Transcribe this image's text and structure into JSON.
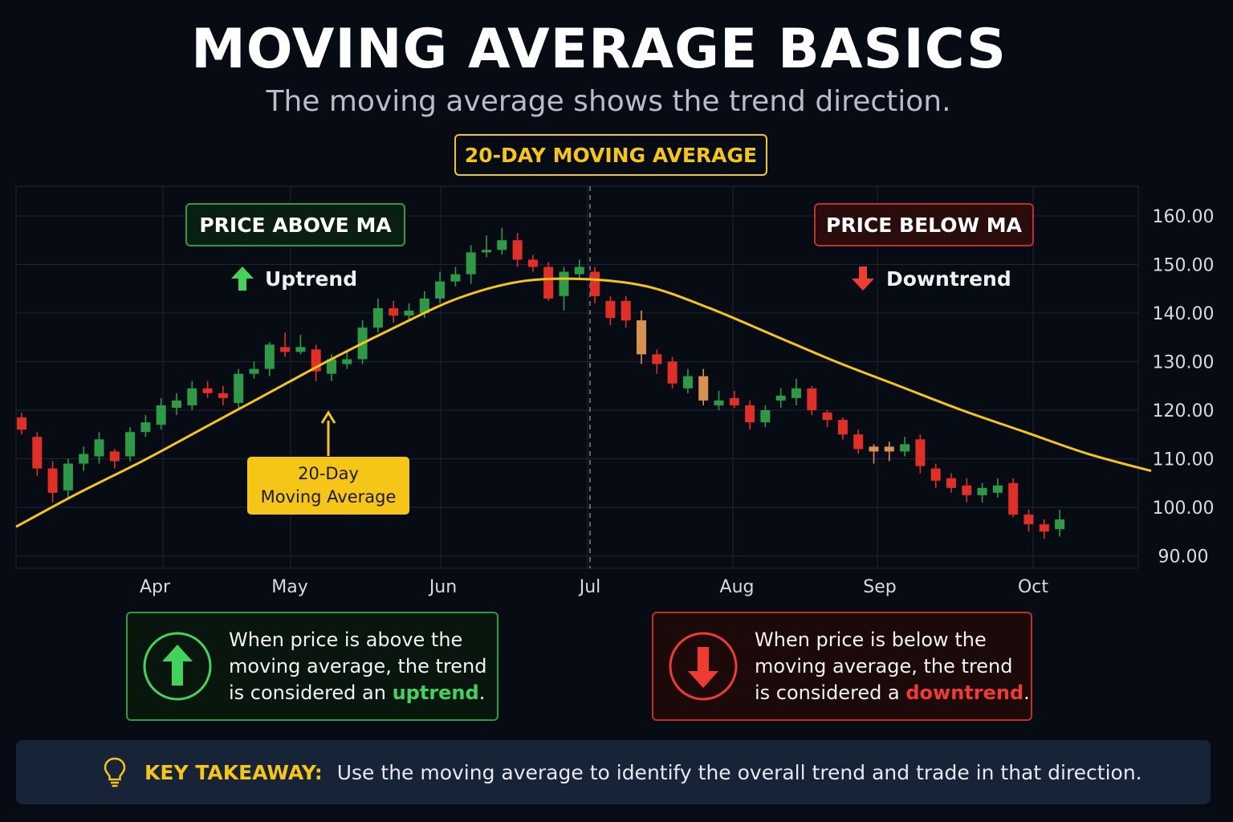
{
  "title": "MOVING AVERAGE BASICS",
  "subtitle": "The moving average shows the trend direction.",
  "ma_badge": "20-DAY MOVING AVERAGE",
  "above_box": {
    "label": "PRICE ABOVE MA",
    "trend": "Uptrend",
    "icon": "arrow-up-icon"
  },
  "below_box": {
    "label": "PRICE BELOW MA",
    "trend": "Downtrend",
    "icon": "arrow-down-icon"
  },
  "ma_callout": {
    "line1": "20-Day",
    "line2": "Moving Average"
  },
  "up_info": {
    "icon": "circle-arrow-up-icon",
    "line1": "When price is above the",
    "line2": "moving average, the trend",
    "line3_prefix": "is considered an ",
    "line3_highlight": "uptrend",
    "line3_suffix": "."
  },
  "down_info": {
    "icon": "circle-arrow-down-icon",
    "line1": "When price is below the",
    "line2": "moving average, the trend",
    "line3_prefix": "is considered a ",
    "line3_highlight": "downtrend",
    "line3_suffix": "."
  },
  "takeaway": {
    "icon": "lightbulb-icon",
    "label": "KEY TAKEAWAY:",
    "text": "Use the moving average to identify the overall trend and trade in that direction."
  },
  "colors": {
    "background": "#070b14",
    "up": "#2e9a47",
    "down": "#e02f26",
    "neutral": "#d9914f",
    "moving_average": "#f5c518",
    "grid": "#1e2633"
  },
  "chart_data": {
    "type": "candlestick",
    "title": "",
    "xlabel": "",
    "ylabel": "",
    "ylim": [
      86,
      162
    ],
    "y_ticks": [
      "160.00",
      "150.00",
      "140.00",
      "130.00",
      "120.00",
      "110.00",
      "100.00",
      "90.00"
    ],
    "x_ticks": [
      "Apr",
      "May",
      "Jun",
      "Jul",
      "Aug",
      "Sep",
      "Oct"
    ],
    "grid": true,
    "divider_at": "Jul",
    "candles": [
      {
        "o": 118.5,
        "c": 116.0,
        "h": 119.5,
        "l": 115.0
      },
      {
        "o": 114.5,
        "c": 108.0,
        "h": 115.5,
        "l": 106.5
      },
      {
        "o": 108.0,
        "c": 103.0,
        "h": 109.5,
        "l": 101.0
      },
      {
        "o": 103.5,
        "c": 109.0,
        "h": 110.0,
        "l": 102.0
      },
      {
        "o": 109.0,
        "c": 111.0,
        "h": 112.5,
        "l": 107.5
      },
      {
        "o": 110.5,
        "c": 114.0,
        "h": 115.5,
        "l": 109.0
      },
      {
        "o": 111.5,
        "c": 109.5,
        "h": 112.0,
        "l": 108.0
      },
      {
        "o": 110.5,
        "c": 115.5,
        "h": 116.5,
        "l": 109.5
      },
      {
        "o": 115.5,
        "c": 117.5,
        "h": 119.0,
        "l": 114.5
      },
      {
        "o": 117.0,
        "c": 121.0,
        "h": 122.5,
        "l": 116.0
      },
      {
        "o": 120.5,
        "c": 122.0,
        "h": 123.5,
        "l": 119.0
      },
      {
        "o": 121.0,
        "c": 124.5,
        "h": 126.0,
        "l": 120.0
      },
      {
        "o": 124.5,
        "c": 123.5,
        "h": 126.0,
        "l": 122.5
      },
      {
        "o": 123.5,
        "c": 122.5,
        "h": 125.0,
        "l": 121.0
      },
      {
        "o": 121.5,
        "c": 127.5,
        "h": 128.5,
        "l": 120.5
      },
      {
        "o": 127.5,
        "c": 128.5,
        "h": 130.0,
        "l": 126.5
      },
      {
        "o": 128.5,
        "c": 133.5,
        "h": 134.0,
        "l": 127.0
      },
      {
        "o": 133.0,
        "c": 132.0,
        "h": 136.0,
        "l": 131.0
      },
      {
        "o": 132.0,
        "c": 133.0,
        "h": 135.5,
        "l": 131.5
      },
      {
        "o": 132.5,
        "c": 128.0,
        "h": 133.5,
        "l": 126.0
      },
      {
        "o": 127.5,
        "c": 130.5,
        "h": 131.5,
        "l": 126.0
      },
      {
        "o": 129.5,
        "c": 130.5,
        "h": 132.0,
        "l": 128.5
      },
      {
        "o": 130.5,
        "c": 137.0,
        "h": 138.5,
        "l": 129.5
      },
      {
        "o": 137.0,
        "c": 141.0,
        "h": 143.0,
        "l": 136.0
      },
      {
        "o": 141.0,
        "c": 139.5,
        "h": 142.5,
        "l": 138.0
      },
      {
        "o": 139.5,
        "c": 140.5,
        "h": 142.0,
        "l": 138.5
      },
      {
        "o": 140.0,
        "c": 143.0,
        "h": 144.5,
        "l": 139.0
      },
      {
        "o": 143.0,
        "c": 146.5,
        "h": 148.5,
        "l": 142.0
      },
      {
        "o": 146.5,
        "c": 148.0,
        "h": 149.5,
        "l": 145.5
      },
      {
        "o": 148.0,
        "c": 152.5,
        "h": 154.0,
        "l": 146.0
      },
      {
        "o": 152.5,
        "c": 153.0,
        "h": 156.0,
        "l": 151.5
      },
      {
        "o": 153.0,
        "c": 155.0,
        "h": 157.5,
        "l": 152.0
      },
      {
        "o": 155.0,
        "c": 151.0,
        "h": 156.5,
        "l": 149.5
      },
      {
        "o": 151.0,
        "c": 149.5,
        "h": 152.0,
        "l": 148.5
      },
      {
        "o": 149.5,
        "c": 143.0,
        "h": 150.5,
        "l": 142.5
      },
      {
        "o": 143.5,
        "c": 148.5,
        "h": 149.5,
        "l": 140.5
      },
      {
        "o": 148.0,
        "c": 149.5,
        "h": 151.0,
        "l": 147.0
      },
      {
        "o": 148.5,
        "c": 143.5,
        "h": 149.5,
        "l": 142.0
      },
      {
        "o": 142.5,
        "c": 139.0,
        "h": 143.5,
        "l": 137.5
      },
      {
        "o": 142.5,
        "c": 138.5,
        "h": 143.5,
        "l": 137.0
      },
      {
        "o": 138.5,
        "c": 131.5,
        "h": 140.5,
        "l": 129.5
      },
      {
        "o": 131.5,
        "c": 129.5,
        "h": 132.5,
        "l": 127.5
      },
      {
        "o": 130.0,
        "c": 125.5,
        "h": 131.0,
        "l": 124.5
      },
      {
        "o": 124.5,
        "c": 127.0,
        "h": 128.5,
        "l": 123.5
      },
      {
        "o": 127.0,
        "c": 122.0,
        "h": 128.5,
        "l": 121.0
      },
      {
        "o": 121.0,
        "c": 122.0,
        "h": 124.0,
        "l": 120.0
      },
      {
        "o": 122.5,
        "c": 121.0,
        "h": 124.0,
        "l": 120.5
      },
      {
        "o": 121.0,
        "c": 117.5,
        "h": 122.0,
        "l": 116.0
      },
      {
        "o": 117.5,
        "c": 120.0,
        "h": 121.0,
        "l": 116.5
      },
      {
        "o": 122.0,
        "c": 123.0,
        "h": 124.5,
        "l": 120.5
      },
      {
        "o": 122.5,
        "c": 124.5,
        "h": 126.5,
        "l": 121.0
      },
      {
        "o": 124.5,
        "c": 120.0,
        "h": 125.0,
        "l": 119.0
      },
      {
        "o": 119.5,
        "c": 118.0,
        "h": 120.0,
        "l": 116.5
      },
      {
        "o": 118.0,
        "c": 115.0,
        "h": 118.5,
        "l": 114.0
      },
      {
        "o": 115.0,
        "c": 112.0,
        "h": 116.0,
        "l": 111.0
      },
      {
        "o": 112.5,
        "c": 111.5,
        "h": 113.0,
        "l": 109.0
      },
      {
        "o": 112.5,
        "c": 111.5,
        "h": 113.5,
        "l": 109.5
      },
      {
        "o": 111.5,
        "c": 113.0,
        "h": 114.5,
        "l": 110.5
      },
      {
        "o": 114.0,
        "c": 108.5,
        "h": 115.0,
        "l": 107.0
      },
      {
        "o": 108.0,
        "c": 105.5,
        "h": 109.0,
        "l": 104.0
      },
      {
        "o": 106.0,
        "c": 104.0,
        "h": 107.0,
        "l": 103.0
      },
      {
        "o": 104.5,
        "c": 102.5,
        "h": 106.0,
        "l": 101.0
      },
      {
        "o": 102.5,
        "c": 104.0,
        "h": 105.0,
        "l": 101.0
      },
      {
        "o": 103.0,
        "c": 104.5,
        "h": 106.0,
        "l": 102.0
      },
      {
        "o": 105.0,
        "c": 98.5,
        "h": 106.0,
        "l": 98.0
      },
      {
        "o": 98.5,
        "c": 96.5,
        "h": 99.5,
        "l": 95.0
      },
      {
        "o": 96.5,
        "c": 95.0,
        "h": 97.5,
        "l": 93.5
      },
      {
        "o": 95.5,
        "c": 97.5,
        "h": 99.5,
        "l": 94.0
      }
    ],
    "neutral_candles": [
      40,
      44,
      55,
      56
    ],
    "moving_average": [
      96.0,
      103.0,
      109.5,
      116.5,
      123.5,
      130.5,
      137.0,
      143.0,
      146.5,
      147.0,
      145.5,
      141.0,
      135.5,
      130.0,
      125.0,
      120.0,
      115.5,
      111.0,
      107.5
    ]
  }
}
